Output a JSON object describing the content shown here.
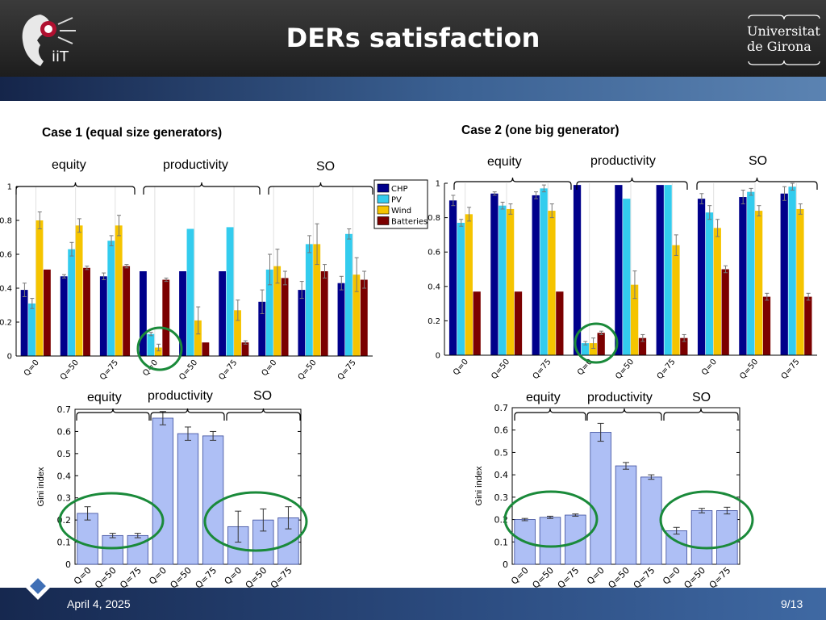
{
  "slide": {
    "title": "DERs satisfaction",
    "date": "April 4, 2025",
    "page": "9/13",
    "university_line1": "Universitat",
    "university_line2": "de Girona",
    "logo_text": "iiT"
  },
  "colors": {
    "header": "#262626",
    "band": "#3b6193",
    "CHP": "#00008b",
    "PV": "#33ccee",
    "Wind": "#f5c400",
    "Batteries": "#7b0000",
    "gini_bar": "#aebff5",
    "circle": "#1a8a3a"
  },
  "labels": {
    "case1": "Case 1 (equal size generators)",
    "case2": "Case 2  (one big generator)",
    "group_equity": "equity",
    "group_productivity": "productivity",
    "group_so": "SO",
    "gini_ylabel": "Gini index"
  },
  "chart_data": [
    {
      "id": "case1-satisfaction",
      "type": "bar",
      "categories": [
        "Q=0",
        "Q=50",
        "Q=75",
        "Q=0",
        "Q=50",
        "Q=75",
        "Q=0",
        "Q=50",
        "Q=75"
      ],
      "groups": [
        "equity",
        "productivity",
        "SO"
      ],
      "ylim": [
        0,
        1
      ],
      "yticks": [
        0,
        0.2,
        0.4,
        0.6,
        0.8,
        1
      ],
      "legend": "top-right",
      "series": [
        {
          "name": "CHP",
          "values": [
            0.39,
            0.47,
            0.47,
            0.5,
            0.5,
            0.5,
            0.32,
            0.39,
            0.43
          ],
          "err": [
            0.04,
            0.01,
            0.02,
            0,
            0,
            0,
            0.07,
            0.05,
            0.04
          ]
        },
        {
          "name": "PV",
          "values": [
            0.31,
            0.63,
            0.68,
            0.13,
            0.75,
            0.76,
            0.51,
            0.66,
            0.72
          ],
          "err": [
            0.03,
            0.04,
            0.03,
            0.01,
            0,
            0,
            0.09,
            0.05,
            0.03
          ]
        },
        {
          "name": "Wind",
          "values": [
            0.8,
            0.77,
            0.77,
            0.05,
            0.21,
            0.27,
            0.53,
            0.66,
            0.48
          ],
          "err": [
            0.05,
            0.04,
            0.06,
            0.02,
            0.08,
            0.06,
            0.1,
            0.12,
            0.1
          ]
        },
        {
          "name": "Batteries",
          "values": [
            0.51,
            0.52,
            0.53,
            0.45,
            0.08,
            0.08,
            0.46,
            0.5,
            0.45
          ],
          "err": [
            0,
            0.01,
            0.01,
            0.01,
            0,
            0.01,
            0.04,
            0.04,
            0.05
          ]
        }
      ]
    },
    {
      "id": "case2-satisfaction",
      "type": "bar",
      "categories": [
        "Q=0",
        "Q=50",
        "Q=75",
        "Q=0",
        "Q=50",
        "Q=75",
        "Q=0",
        "Q=50",
        "Q=75"
      ],
      "groups": [
        "equity",
        "productivity",
        "SO"
      ],
      "ylim": [
        0,
        1
      ],
      "yticks": [
        0,
        0.2,
        0.4,
        0.6,
        0.8,
        1
      ],
      "series": [
        {
          "name": "CHP",
          "values": [
            0.9,
            0.94,
            0.93,
            0.99,
            0.99,
            0.99,
            0.91,
            0.92,
            0.94
          ],
          "err": [
            0.03,
            0.01,
            0.02,
            0,
            0,
            0,
            0.03,
            0.04,
            0.04
          ]
        },
        {
          "name": "PV",
          "values": [
            0.77,
            0.87,
            0.97,
            0.07,
            0.91,
            0.99,
            0.83,
            0.95,
            0.98
          ],
          "err": [
            0.02,
            0.02,
            0.02,
            0.01,
            0,
            0,
            0.04,
            0.02,
            0.02
          ]
        },
        {
          "name": "Wind",
          "values": [
            0.82,
            0.85,
            0.84,
            0.07,
            0.41,
            0.64,
            0.74,
            0.84,
            0.85
          ],
          "err": [
            0.04,
            0.03,
            0.04,
            0.03,
            0.08,
            0.06,
            0.05,
            0.03,
            0.03
          ]
        },
        {
          "name": "Batteries",
          "values": [
            0.37,
            0.37,
            0.37,
            0.13,
            0.1,
            0.1,
            0.5,
            0.34,
            0.34
          ],
          "err": [
            0,
            0,
            0,
            0.01,
            0.02,
            0.02,
            0.02,
            0.02,
            0.02
          ]
        }
      ]
    },
    {
      "id": "case1-gini",
      "type": "bar",
      "categories": [
        "Q=0",
        "Q=50",
        "Q=75",
        "Q=0",
        "Q=50",
        "Q=75",
        "Q=0",
        "Q=50",
        "Q=75"
      ],
      "groups": [
        "equity",
        "productivity",
        "SO"
      ],
      "ylabel": "Gini index",
      "ylim": [
        0,
        0.7
      ],
      "yticks": [
        0,
        0.1,
        0.2,
        0.3,
        0.4,
        0.5,
        0.6,
        0.7
      ],
      "values": [
        0.23,
        0.13,
        0.13,
        0.66,
        0.59,
        0.58,
        0.17,
        0.2,
        0.21
      ],
      "err": [
        0.03,
        0.01,
        0.01,
        0.03,
        0.03,
        0.02,
        0.07,
        0.05,
        0.05
      ]
    },
    {
      "id": "case2-gini",
      "type": "bar",
      "categories": [
        "Q=0",
        "Q=50",
        "Q=75",
        "Q=0",
        "Q=50",
        "Q=75",
        "Q=0",
        "Q=50",
        "Q=75"
      ],
      "groups": [
        "equity",
        "productivity",
        "SO"
      ],
      "ylabel": "Gini index",
      "ylim": [
        0,
        0.7
      ],
      "yticks": [
        0,
        0.1,
        0.2,
        0.3,
        0.4,
        0.5,
        0.6,
        0.7
      ],
      "values": [
        0.2,
        0.21,
        0.22,
        0.59,
        0.44,
        0.39,
        0.15,
        0.24,
        0.24
      ],
      "err": [
        0.005,
        0.005,
        0.005,
        0.04,
        0.015,
        0.01,
        0.015,
        0.01,
        0.015
      ]
    }
  ]
}
